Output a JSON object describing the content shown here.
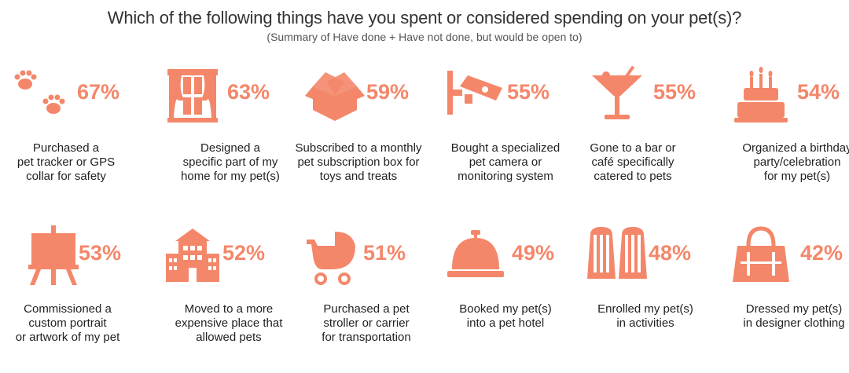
{
  "title": "Which of the following things have you spent or considered spending on your pet(s)?",
  "subtitle": "(Summary of Have done + Have not done, but would be open to)",
  "accent_color": "#F4876A",
  "chart_data": {
    "type": "infographic",
    "title": "Which of the following things have you spent or considered spending on your pet(s)?",
    "subtitle": "(Summary of Have done + Have not done, but would be open to)",
    "unit": "%",
    "categories": [
      "Purchased a pet tracker or GPS collar for safety",
      "Designed a specific part of my home for my pet(s)",
      "Subscribed to a monthly pet subscription box for toys and treats",
      "Bought a specialized pet camera or monitoring system",
      "Gone to a bar or café specifically catered to pets",
      "Organized a birthday party/celebration for my pet(s)",
      "Commissioned a custom portrait or artwork of my pet",
      "Moved to a more expensive place that allowed pets",
      "Purchased a pet stroller or carrier for transportation",
      "Booked my pet(s) into a pet hotel",
      "Enrolled my pet(s) in activities",
      "Dressed my pet(s) in designer clothing"
    ],
    "values": [
      67,
      63,
      59,
      55,
      55,
      54,
      53,
      52,
      51,
      49,
      48,
      42
    ],
    "items": [
      {
        "pct": "67%",
        "icon": "paw-prints-icon",
        "lines": [
          "Purchased a",
          "pet tracker or GPS",
          "collar for safety"
        ]
      },
      {
        "pct": "63%",
        "icon": "window-curtain-icon",
        "lines": [
          "Designed a",
          "specific part of my",
          "home for my pet(s)"
        ]
      },
      {
        "pct": "59%",
        "icon": "open-box-icon",
        "lines": [
          "Subscribed to a monthly",
          "pet subscription box for",
          "toys and treats"
        ]
      },
      {
        "pct": "55%",
        "icon": "security-camera-icon",
        "lines": [
          "Bought a specialized",
          "pet camera or",
          "monitoring system"
        ]
      },
      {
        "pct": "55%",
        "icon": "cocktail-glass-icon",
        "lines": [
          "Gone to a bar or",
          "café specifically",
          "catered to pets"
        ]
      },
      {
        "pct": "54%",
        "icon": "birthday-cake-icon",
        "lines": [
          "Organized a birthday",
          "party/celebration",
          "for my pet(s)"
        ]
      },
      {
        "pct": "53%",
        "icon": "easel-icon",
        "lines": [
          "Commissioned a",
          "custom portrait",
          "or artwork of my pet"
        ]
      },
      {
        "pct": "52%",
        "icon": "building-icon",
        "lines": [
          "Moved to a more",
          "expensive place that",
          "allowed pets"
        ]
      },
      {
        "pct": "51%",
        "icon": "stroller-icon",
        "lines": [
          "Purchased a pet",
          "stroller or carrier",
          "for transportation"
        ]
      },
      {
        "pct": "49%",
        "icon": "service-bell-icon",
        "lines": [
          "Booked my pet(s)",
          "into a pet hotel"
        ]
      },
      {
        "pct": "48%",
        "icon": "swim-fins-icon",
        "lines": [
          "Enrolled my pet(s)",
          "in activities"
        ]
      },
      {
        "pct": "42%",
        "icon": "handbag-icon",
        "lines": [
          "Dressed my pet(s)",
          "in designer clothing"
        ]
      }
    ]
  }
}
